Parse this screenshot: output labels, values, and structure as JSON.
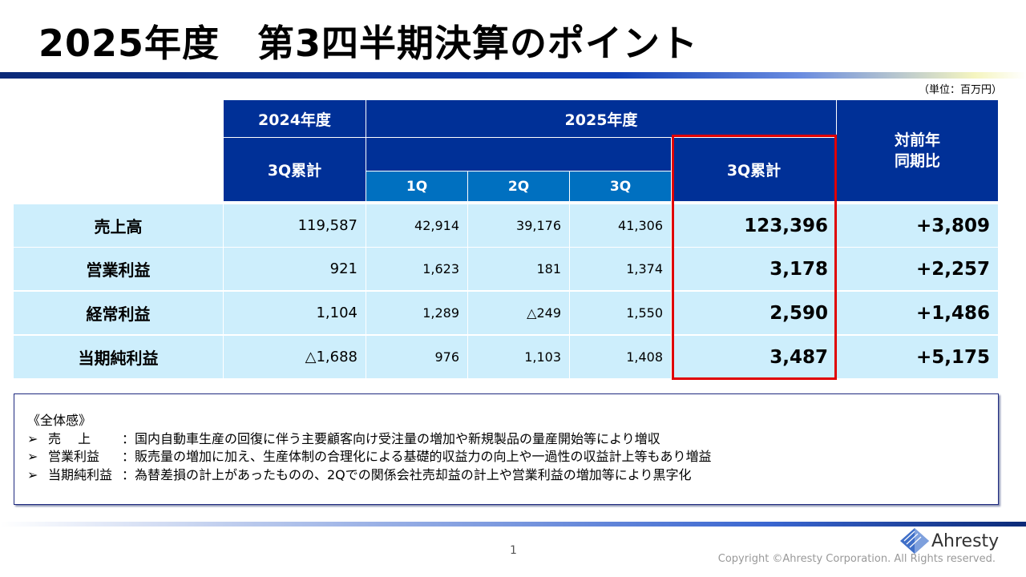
{
  "title": "2025年度　第3四半期決算のポイント",
  "unit": "（単位：百万円）",
  "table": {
    "h2024": "2024年度",
    "h2025": "2025年度",
    "cum2024": "3Q累計",
    "q1": "1Q",
    "q2": "2Q",
    "q3": "3Q",
    "cum2025": "3Q累計",
    "yoy": "対前年\n同期比",
    "rows": [
      {
        "label": "売上高",
        "prev": "119,587",
        "q1": "42,914",
        "q2": "39,176",
        "q3": "41,306",
        "cum": "123,396",
        "yoy": "+3,809"
      },
      {
        "label": "営業利益",
        "prev": "921",
        "q1": "1,623",
        "q2": "181",
        "q3": "1,374",
        "cum": "3,178",
        "yoy": "+2,257"
      },
      {
        "label": "経常利益",
        "prev": "1,104",
        "q1": "1,289",
        "q2": "△249",
        "q3": "1,550",
        "cum": "2,590",
        "yoy": "+1,486"
      },
      {
        "label": "当期純利益",
        "prev": "△1,688",
        "q1": "976",
        "q2": "1,103",
        "q3": "1,408",
        "cum": "3,487",
        "yoy": "+5,175"
      }
    ]
  },
  "notes": {
    "heading": "《全体感》",
    "items": [
      {
        "key": "売　 上",
        "text": "：国内自動車生産の回復に伴う主要顧客向け受注量の増加や新規製品の量産開始等により増収"
      },
      {
        "key": "営業利益",
        "text": "：販売量の増加に加え、生産体制の合理化による基礎的収益力の向上や一過性の収益計上等もあり増益"
      },
      {
        "key": "当期純利益",
        "text": "：為替差損の計上があったものの、2Qでの関係会社売却益の計上や営業利益の増加等により黒字化"
      }
    ]
  },
  "footer": {
    "page": "1",
    "logo": "Ahresty",
    "copyright": "Copyright ©Ahresty Corporation. All Rights reserved."
  },
  "colors": {
    "header": "#003097",
    "subheader": "#0070c0",
    "body": "#cdeefc",
    "highlight": "#e00000"
  }
}
